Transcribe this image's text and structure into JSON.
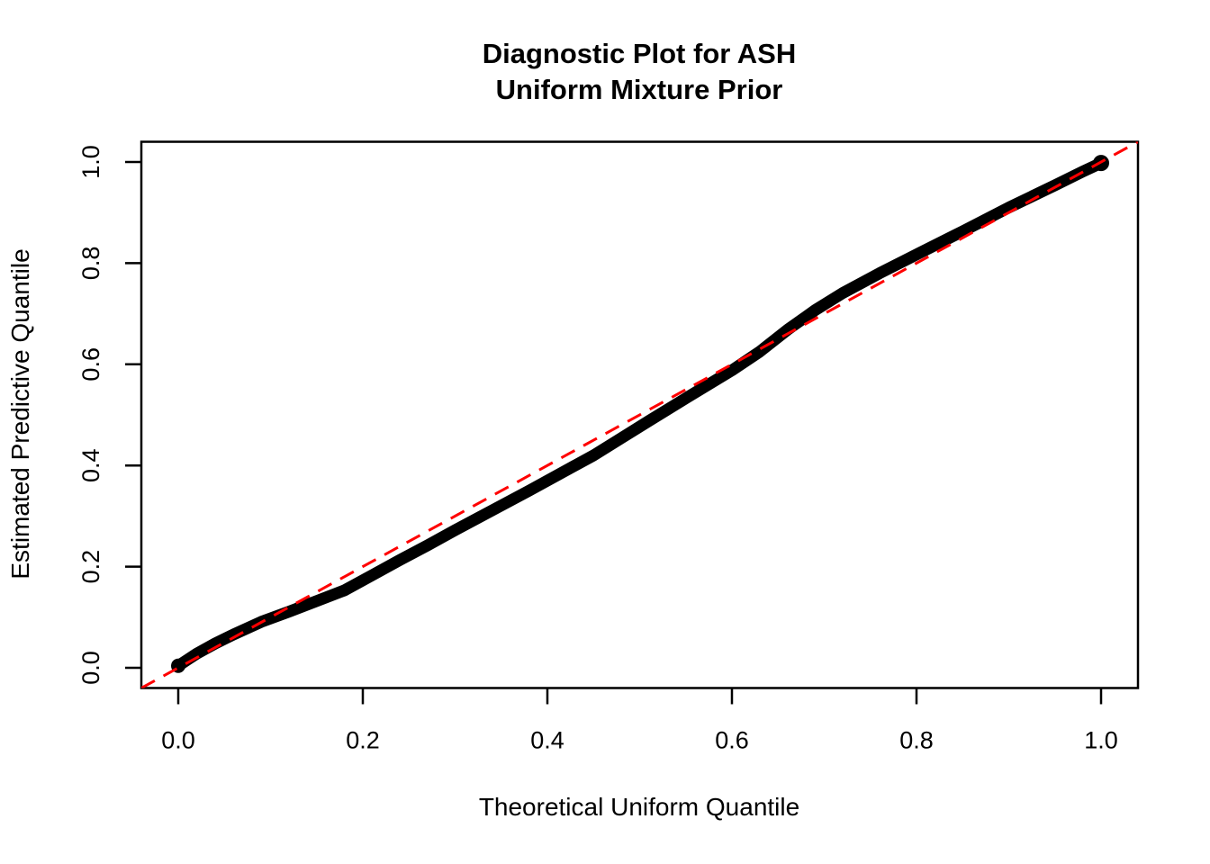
{
  "figure": {
    "background": "#ffffff"
  },
  "chart_data": {
    "type": "scatter",
    "title_line1": "Diagnostic Plot for ASH",
    "title_line2": "Uniform Mixture Prior",
    "xlabel": "Theoretical Uniform Quantile",
    "ylabel": "Estimated Predictive Quantile",
    "xlim": [
      -0.04,
      1.04
    ],
    "ylim": [
      -0.04,
      1.04
    ],
    "xticks": {
      "values": [
        0.0,
        0.2,
        0.4,
        0.6,
        0.8,
        1.0
      ],
      "labels": [
        "0.0",
        "0.2",
        "0.4",
        "0.6",
        "0.8",
        "1.0"
      ]
    },
    "yticks": {
      "values": [
        0.0,
        0.2,
        0.4,
        0.6,
        0.8,
        1.0
      ],
      "labels": [
        "0.0",
        "0.2",
        "0.4",
        "0.6",
        "0.8",
        "1.0"
      ]
    },
    "grid": false,
    "legend": "none",
    "axis_color": "#000000",
    "series": [
      {
        "name": "qq-points",
        "type": "scatter-line",
        "color": "#000000",
        "marker": "filled-circle",
        "points": [
          [
            0.0,
            0.004
          ],
          [
            0.01,
            0.016
          ],
          [
            0.02,
            0.028
          ],
          [
            0.04,
            0.048
          ],
          [
            0.06,
            0.066
          ],
          [
            0.09,
            0.091
          ],
          [
            0.12,
            0.111
          ],
          [
            0.15,
            0.132
          ],
          [
            0.18,
            0.153
          ],
          [
            0.21,
            0.183
          ],
          [
            0.24,
            0.213
          ],
          [
            0.27,
            0.242
          ],
          [
            0.3,
            0.272
          ],
          [
            0.34,
            0.311
          ],
          [
            0.38,
            0.35
          ],
          [
            0.42,
            0.39
          ],
          [
            0.45,
            0.42
          ],
          [
            0.48,
            0.454
          ],
          [
            0.51,
            0.488
          ],
          [
            0.55,
            0.533
          ],
          [
            0.6,
            0.588
          ],
          [
            0.63,
            0.625
          ],
          [
            0.66,
            0.668
          ],
          [
            0.69,
            0.707
          ],
          [
            0.72,
            0.741
          ],
          [
            0.76,
            0.78
          ],
          [
            0.8,
            0.817
          ],
          [
            0.85,
            0.863
          ],
          [
            0.9,
            0.91
          ],
          [
            0.95,
            0.954
          ],
          [
            0.98,
            0.981
          ],
          [
            1.0,
            0.998
          ]
        ]
      },
      {
        "name": "identity-reference-line",
        "type": "abline",
        "intercept": 0,
        "slope": 1,
        "color": "#FF0000",
        "style": "dashed"
      }
    ]
  }
}
